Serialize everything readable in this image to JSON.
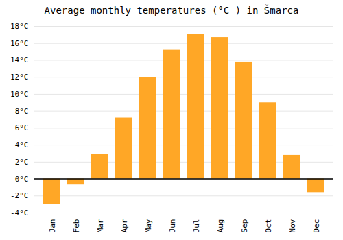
{
  "chart_data": {
    "type": "bar",
    "title": "Average monthly temperatures (°C ) in Šmarca",
    "categories": [
      "Jan",
      "Feb",
      "Mar",
      "Apr",
      "May",
      "Jun",
      "Jul",
      "Aug",
      "Sep",
      "Oct",
      "Nov",
      "Dec"
    ],
    "values": [
      -3.0,
      -0.7,
      2.9,
      7.2,
      12.0,
      15.2,
      17.1,
      16.7,
      13.8,
      9.0,
      2.8,
      -1.6
    ],
    "color": "#FFA726",
    "ylim": [
      -4,
      18
    ],
    "yticks": [
      {
        "value": -4,
        "label": "-4°C"
      },
      {
        "value": -2,
        "label": "-2°C"
      },
      {
        "value": 0,
        "label": "0°C"
      },
      {
        "value": 2,
        "label": "2°C"
      },
      {
        "value": 4,
        "label": "4°C"
      },
      {
        "value": 6,
        "label": "6°C"
      },
      {
        "value": 8,
        "label": "8°C"
      },
      {
        "value": 10,
        "label": "10°C"
      },
      {
        "value": 12,
        "label": "12°C"
      },
      {
        "value": 14,
        "label": "14°C"
      },
      {
        "value": 16,
        "label": "16°C"
      },
      {
        "value": 18,
        "label": "18°C"
      }
    ],
    "grid": true
  }
}
